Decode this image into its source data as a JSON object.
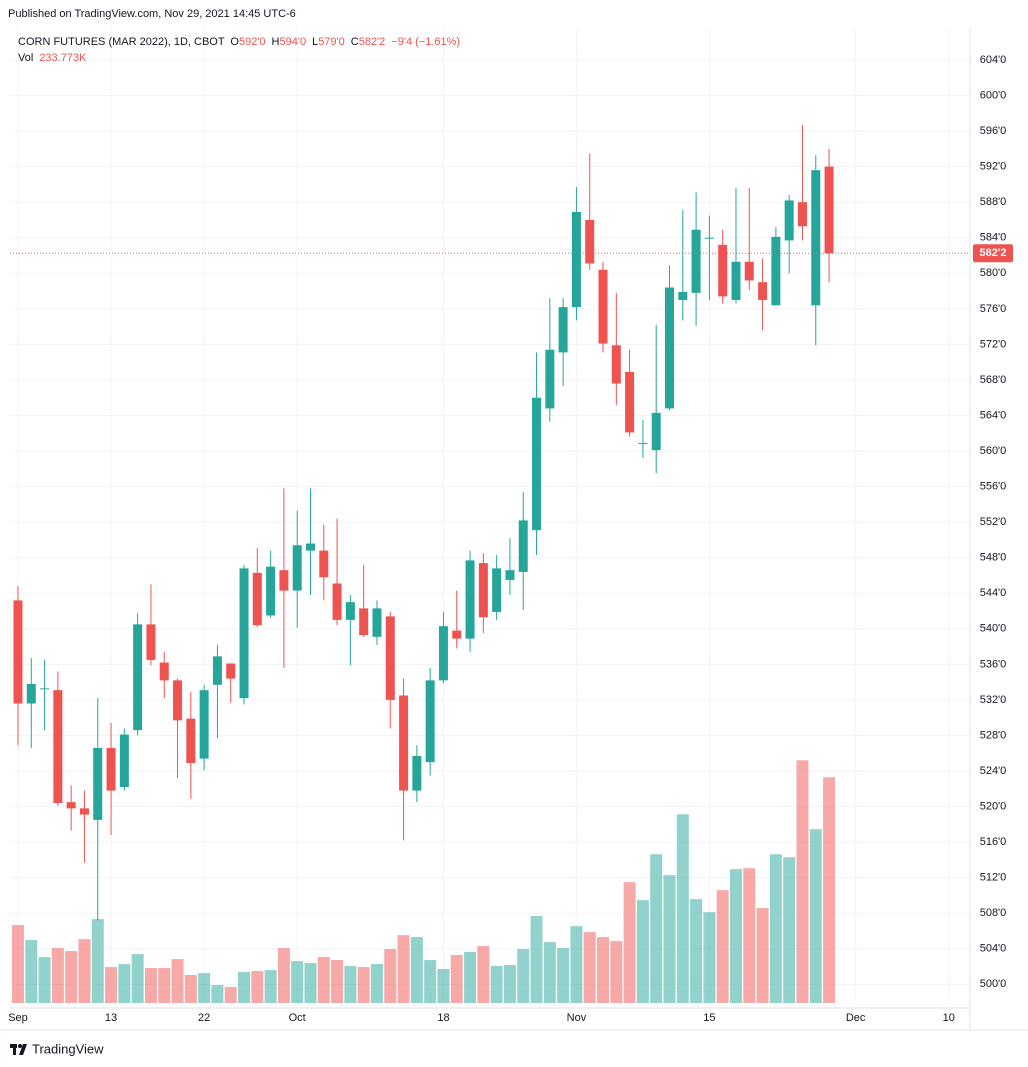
{
  "header": {
    "published": "Published on TradingView.com, Nov 29, 2021 14:45 UTC-6",
    "footer": "TradingView"
  },
  "chart_data": {
    "type": "candlestick",
    "symbol": "CORN FUTURES (MAR 2022), 1D, CBOT",
    "legend": [
      {
        "key": "O",
        "value": "592'0"
      },
      {
        "key": "H",
        "value": "594'0"
      },
      {
        "key": "L",
        "value": "579'0"
      },
      {
        "key": "C",
        "value": "582'2"
      }
    ],
    "change": "−9'4 (−1.61%)",
    "volume_label": "Vol",
    "volume_value": "233.773K",
    "up_color": "#26a69a",
    "down_color": "#ef5350",
    "grid": true,
    "x": [
      0,
      1,
      2,
      3,
      4,
      5,
      6,
      7,
      8,
      9,
      10,
      11,
      12,
      13,
      14,
      15,
      16,
      17,
      18,
      19,
      20,
      21,
      22,
      23,
      24,
      25,
      26,
      27,
      28,
      29,
      30,
      31,
      32,
      33,
      34,
      35,
      36,
      37,
      38,
      39,
      40,
      41,
      42,
      43,
      44,
      45,
      46,
      47,
      48,
      49,
      50,
      51,
      52,
      53,
      54,
      55,
      56,
      57,
      58,
      59,
      60,
      61
    ],
    "open": [
      543.2,
      531.6,
      533.3,
      533.1,
      520.5,
      519.8,
      518.5,
      526.6,
      522.2,
      528.6,
      540.5,
      536.2,
      534.2,
      529.9,
      525.4,
      533.7,
      536.1,
      532.2,
      546.3,
      541.5,
      546.6,
      544.3,
      548.8,
      548.8,
      545.1,
      541.0,
      542.3,
      539.1,
      541.4,
      532.5,
      521.8,
      525.0,
      534.2,
      539.8,
      538.9,
      547.4,
      541.9,
      545.5,
      546.4,
      551.1,
      564.8,
      571.1,
      576.2,
      586.0,
      580.4,
      571.9,
      568.9,
      560.9,
      560.1,
      564.8,
      577.0,
      577.8,
      584.0,
      583.2,
      577.0,
      581.3,
      579.0,
      576.4,
      583.7,
      588.0,
      576.4,
      592
    ],
    "high": [
      544.8,
      536.7,
      536.5,
      535.2,
      522.4,
      521.8,
      532.2,
      529.4,
      528.8,
      541.8,
      545.0,
      537.4,
      534.4,
      532.9,
      533.7,
      538.2,
      536.1,
      547.2,
      549.1,
      548.8,
      555.8,
      553.3,
      555.8,
      551.7,
      552.4,
      543.8,
      547.2,
      543.2,
      541.9,
      534.4,
      526.9,
      535.6,
      541.9,
      544.3,
      548.8,
      548.5,
      548.3,
      550.2,
      555.4,
      571.1,
      577.2,
      577.2,
      589.7,
      593.5,
      581.3,
      577.8,
      571.4,
      563.5,
      574.2,
      580.9,
      587.1,
      589.1,
      586.5,
      584.9,
      589.6,
      589.6,
      581.7,
      585.2,
      588.8,
      596.7,
      593.3,
      594
    ],
    "low": [
      526.9,
      526.6,
      528.6,
      520.1,
      517.3,
      513.7,
      507.2,
      516.8,
      521.8,
      528.0,
      535.9,
      532.2,
      523.2,
      520.9,
      524.1,
      527.7,
      531.7,
      531.5,
      540.2,
      541.2,
      535.6,
      540.1,
      543.8,
      543.2,
      540.4,
      535.9,
      539.1,
      538.2,
      528.8,
      516.2,
      520.5,
      523.5,
      533.9,
      537.8,
      537.4,
      539.5,
      541.0,
      543.8,
      542.1,
      548.3,
      563.3,
      567.3,
      574.7,
      580.4,
      571.1,
      565.2,
      561.6,
      559.2,
      557.5,
      564.6,
      574.7,
      574.1,
      577.0,
      576.6,
      576.6,
      578.1,
      573.6,
      576.4,
      580.0,
      583.7,
      571.9,
      579
    ],
    "close": [
      531.6,
      533.8,
      533.3,
      520.4,
      519.8,
      519.1,
      526.6,
      521.8,
      528.1,
      540.5,
      536.5,
      534.2,
      529.7,
      524.9,
      533.1,
      536.9,
      534.4,
      546.8,
      540.4,
      547.0,
      544.3,
      549.4,
      549.6,
      545.8,
      541.0,
      543.0,
      539.3,
      542.3,
      532.0,
      521.8,
      525.7,
      534.2,
      540.3,
      538.9,
      547.7,
      541.3,
      546.8,
      546.6,
      552.2,
      566.0,
      571.4,
      576.2,
      586.9,
      581.1,
      572.1,
      567.6,
      562.1,
      560.9,
      564.3,
      578.4,
      577.9,
      584.9,
      584.0,
      577.4,
      581.3,
      579.2,
      577.0,
      584.1,
      588.2,
      585.3,
      591.6,
      582.25
    ],
    "volume": [
      80.7,
      65.2,
      47.6,
      56.9,
      53.8,
      66.2,
      86.9,
      37.2,
      40.3,
      50.7,
      36.2,
      36.2,
      45.5,
      29.0,
      31.0,
      18.6,
      16.6,
      32.1,
      33.1,
      34.1,
      56.9,
      43.4,
      41.4,
      47.6,
      44.5,
      38.3,
      37.2,
      40.3,
      55.9,
      70.3,
      68.3,
      44.5,
      35.2,
      49.7,
      52.8,
      59.0,
      38.3,
      39.3,
      55.9,
      90.0,
      63.1,
      56.9,
      79.6,
      73.4,
      68.3,
      64.1,
      125.2,
      106.5,
      154.1,
      132.4,
      195.5,
      107.6,
      94.1,
      116.9,
      138.6,
      139.6,
      98.3,
      154.1,
      151.0,
      251.4,
      180.0,
      233.773
    ],
    "xlim": [
      -0.6,
      71.6
    ],
    "xticks": [
      {
        "value": 0,
        "label": "Sep"
      },
      {
        "value": 7,
        "label": "13"
      },
      {
        "value": 14,
        "label": "22"
      },
      {
        "value": 21,
        "label": "Oct"
      },
      {
        "value": 32,
        "label": "18"
      },
      {
        "value": 42,
        "label": "Nov"
      },
      {
        "value": 52,
        "label": "15"
      },
      {
        "value": 63,
        "label": "Dec"
      },
      {
        "value": 70,
        "label": "10"
      }
    ],
    "ylim": [
      497.9,
      607.6
    ],
    "yticks": [
      {
        "value": 500,
        "label": "500'0"
      },
      {
        "value": 504,
        "label": "504'0"
      },
      {
        "value": 508,
        "label": "508'0"
      },
      {
        "value": 512,
        "label": "512'0"
      },
      {
        "value": 516,
        "label": "516'0"
      },
      {
        "value": 520,
        "label": "520'0"
      },
      {
        "value": 524,
        "label": "524'0"
      },
      {
        "value": 528,
        "label": "528'0"
      },
      {
        "value": 532,
        "label": "532'0"
      },
      {
        "value": 536,
        "label": "536'0"
      },
      {
        "value": 540,
        "label": "540'0"
      },
      {
        "value": 544,
        "label": "544'0"
      },
      {
        "value": 548,
        "label": "548'0"
      },
      {
        "value": 552,
        "label": "552'0"
      },
      {
        "value": 556,
        "label": "556'0"
      },
      {
        "value": 560,
        "label": "560'0"
      },
      {
        "value": 564,
        "label": "564'0"
      },
      {
        "value": 568,
        "label": "568'0"
      },
      {
        "value": 572,
        "label": "572'0"
      },
      {
        "value": 576,
        "label": "576'0"
      },
      {
        "value": 580,
        "label": "580'0"
      },
      {
        "value": 584,
        "label": "584'0"
      },
      {
        "value": 588,
        "label": "588'0"
      },
      {
        "value": 592,
        "label": "592'0"
      },
      {
        "value": 596,
        "label": "596'0"
      },
      {
        "value": 600,
        "label": "600'0"
      },
      {
        "value": 604,
        "label": "604'0"
      }
    ],
    "volume_lim": [
      0,
      290
    ],
    "last_price": {
      "value": 582.25,
      "label": "582'2"
    }
  }
}
